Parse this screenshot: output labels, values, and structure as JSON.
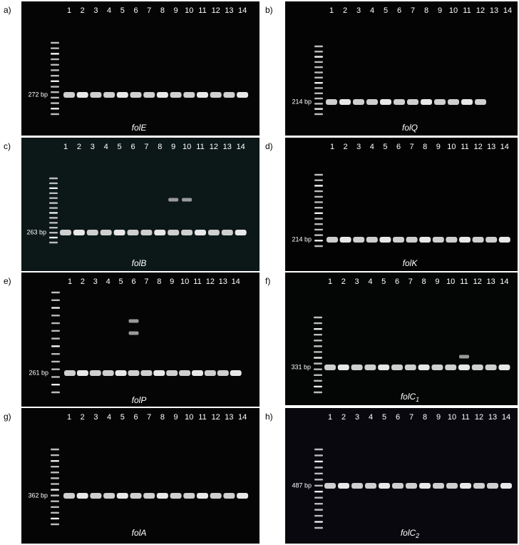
{
  "panels": [
    {
      "label": "a)",
      "lanes": [
        "1",
        "2",
        "3",
        "4",
        "5",
        "6",
        "7",
        "8",
        "9",
        "10",
        "11",
        "12",
        "13",
        "14"
      ],
      "size_label": "272 bp",
      "gene": "folE"
    },
    {
      "label": "b)",
      "lanes": [
        "1",
        "2",
        "3",
        "4",
        "5",
        "6",
        "7",
        "8",
        "9",
        "10",
        "11",
        "12",
        "13",
        "14"
      ],
      "size_label": "214 bp",
      "gene": "folQ"
    },
    {
      "label": "c)",
      "lanes": [
        "1",
        "2",
        "3",
        "4",
        "5",
        "6",
        "7",
        "8",
        "9",
        "10",
        "11",
        "12",
        "13",
        "14"
      ],
      "size_label": "263 bp",
      "gene": "folB"
    },
    {
      "label": "d)",
      "lanes": [
        "1",
        "2",
        "3",
        "4",
        "5",
        "6",
        "7",
        "8",
        "9",
        "10",
        "11",
        "12",
        "13",
        "14"
      ],
      "size_label": "214 bp",
      "gene": "folK"
    },
    {
      "label": "e)",
      "lanes": [
        "1",
        "2",
        "3",
        "4",
        "5",
        "6",
        "7",
        "8",
        "9",
        "10",
        "11",
        "12",
        "13",
        "14"
      ],
      "size_label": "261 bp",
      "gene": "folP"
    },
    {
      "label": "f)",
      "lanes": [
        "1",
        "2",
        "3",
        "4",
        "5",
        "6",
        "7",
        "8",
        "9",
        "10",
        "11",
        "12",
        "13",
        "14"
      ],
      "size_label": "331 bp",
      "gene": "folC",
      "gene_subscript": "1"
    },
    {
      "label": "g)",
      "lanes": [
        "1",
        "2",
        "3",
        "4",
        "5",
        "6",
        "7",
        "8",
        "9",
        "10",
        "11",
        "12",
        "13",
        "14"
      ],
      "size_label": "362 bp",
      "gene": "folA"
    },
    {
      "label": "h)",
      "lanes": [
        "1",
        "2",
        "3",
        "4",
        "5",
        "6",
        "7",
        "8",
        "9",
        "10",
        "11",
        "12",
        "13",
        "14"
      ],
      "size_label": "487 bp",
      "gene": "folC",
      "gene_subscript": "2"
    }
  ]
}
